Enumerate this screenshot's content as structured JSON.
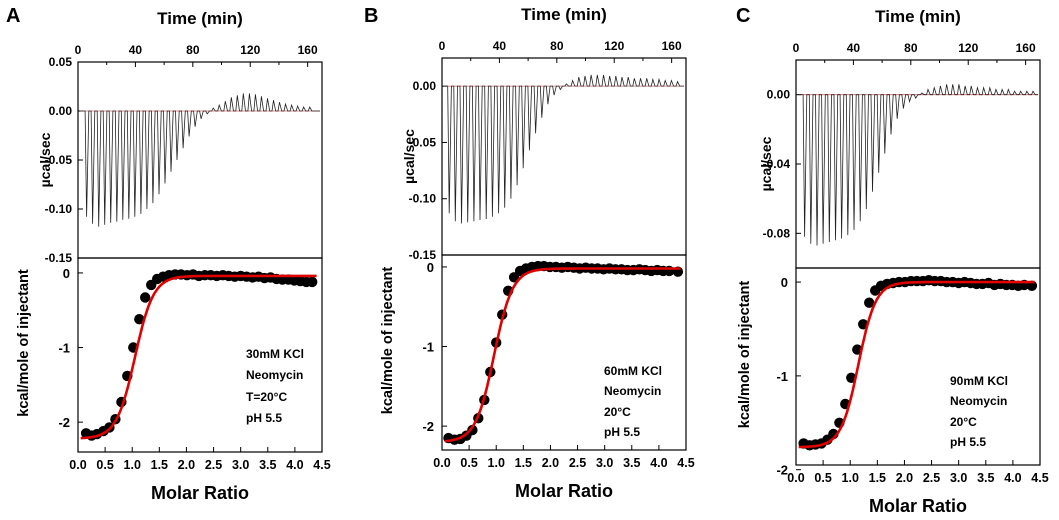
{
  "colors": {
    "axis": "#000000",
    "raw": "#222222",
    "baseline": "#d06060",
    "fit": "#e00000",
    "point": "#000000"
  },
  "chart_data": [
    {
      "type": "scatter",
      "panel_label": "A",
      "top_title": "Time (min)",
      "top_xlim": [
        0,
        170
      ],
      "top_xticks": [
        "0",
        "40",
        "80",
        "120",
        "160"
      ],
      "top_ylabel": "µcal/sec",
      "top_ylim": [
        -0.15,
        0.05
      ],
      "top_yticks": [
        "0.05",
        "0.00",
        "-0.05",
        "-0.10",
        "-0.15"
      ],
      "raw_peaks": {
        "n": 38,
        "t_start": 6,
        "t_step": 4.2,
        "y": [
          -0.108,
          -0.115,
          -0.118,
          -0.116,
          -0.114,
          -0.113,
          -0.111,
          -0.11,
          -0.108,
          -0.105,
          -0.1,
          -0.094,
          -0.085,
          -0.074,
          -0.062,
          -0.05,
          -0.038,
          -0.026,
          -0.016,
          -0.008,
          -0.003,
          0.003,
          0.006,
          0.01,
          0.014,
          0.016,
          0.018,
          0.018,
          0.017,
          0.015,
          0.013,
          0.011,
          0.009,
          0.007,
          0.006,
          0.005,
          0.004,
          0.004
        ]
      },
      "bottom_ylabel": "kcal/mole of injectant",
      "bottom_xlabel": "Molar Ratio",
      "bottom_xlim": [
        0,
        4.5
      ],
      "bottom_xticks": [
        "0.0",
        "0.5",
        "1.0",
        "1.5",
        "2.0",
        "2.5",
        "3.0",
        "3.5",
        "4.0",
        "4.5"
      ],
      "bottom_ylim": [
        -2.4,
        0.2
      ],
      "bottom_yticks": [
        "0",
        "-1",
        "-2"
      ],
      "points": {
        "x": [
          0.15,
          0.25,
          0.35,
          0.47,
          0.58,
          0.69,
          0.8,
          0.91,
          1.02,
          1.13,
          1.24,
          1.35,
          1.46,
          1.57,
          1.68,
          1.79,
          1.9,
          2.01,
          2.12,
          2.23,
          2.34,
          2.45,
          2.56,
          2.67,
          2.78,
          2.89,
          3.0,
          3.11,
          3.22,
          3.33,
          3.44,
          3.55,
          3.66,
          3.77,
          3.88,
          3.99,
          4.1,
          4.21,
          4.32
        ],
        "y": [
          -2.15,
          -2.18,
          -2.16,
          -2.12,
          -2.07,
          -1.96,
          -1.73,
          -1.38,
          -1.0,
          -0.62,
          -0.33,
          -0.16,
          -0.08,
          -0.05,
          -0.03,
          -0.02,
          -0.02,
          -0.03,
          -0.02,
          -0.04,
          -0.03,
          -0.03,
          -0.04,
          -0.03,
          -0.04,
          -0.05,
          -0.04,
          -0.05,
          -0.06,
          -0.05,
          -0.07,
          -0.06,
          -0.08,
          -0.09,
          -0.09,
          -0.1,
          -0.11,
          -0.12,
          -0.12
        ]
      },
      "fit": {
        "top": -0.04,
        "bottom": -2.22,
        "midpoint": 1.05,
        "width": 0.17
      },
      "annotation": [
        "30mM KCl",
        "Neomycin",
        "T=20°C",
        "pH 5.5"
      ]
    },
    {
      "type": "scatter",
      "panel_label": "B",
      "top_title": "Time (min)",
      "top_xlim": [
        0,
        170
      ],
      "top_xticks": [
        "0",
        "40",
        "80",
        "120",
        "160"
      ],
      "top_ylabel": "µcal/sec",
      "top_ylim": [
        -0.15,
        0.025
      ],
      "top_yticks": [
        "0.00",
        "-0.05",
        "-0.10",
        "-0.15"
      ],
      "raw_peaks": {
        "n": 38,
        "t_start": 5,
        "t_step": 4.3,
        "y": [
          -0.113,
          -0.12,
          -0.122,
          -0.121,
          -0.12,
          -0.119,
          -0.118,
          -0.116,
          -0.113,
          -0.108,
          -0.1,
          -0.088,
          -0.073,
          -0.057,
          -0.042,
          -0.028,
          -0.016,
          -0.008,
          -0.003,
          0.002,
          0.005,
          0.008,
          0.009,
          0.01,
          0.01,
          0.01,
          0.009,
          0.009,
          0.008,
          0.008,
          0.007,
          0.007,
          0.007,
          0.006,
          0.006,
          0.005,
          0.005,
          0.004
        ]
      },
      "bottom_ylabel": "kcal/mole of injectant",
      "bottom_xlabel": "Molar Ratio",
      "bottom_xlim": [
        0,
        4.5
      ],
      "bottom_xticks": [
        "0.0",
        "0.5",
        "1.0",
        "1.5",
        "2.0",
        "2.5",
        "3.0",
        "3.5",
        "4.0",
        "4.5"
      ],
      "bottom_ylim": [
        -2.3,
        0.15
      ],
      "bottom_yticks": [
        "0",
        "-1",
        "-2"
      ],
      "points": {
        "x": [
          0.12,
          0.23,
          0.34,
          0.45,
          0.56,
          0.67,
          0.78,
          0.89,
          1.0,
          1.11,
          1.22,
          1.33,
          1.44,
          1.55,
          1.66,
          1.77,
          1.88,
          1.99,
          2.1,
          2.21,
          2.32,
          2.43,
          2.54,
          2.65,
          2.76,
          2.87,
          2.98,
          3.09,
          3.2,
          3.31,
          3.42,
          3.53,
          3.64,
          3.75,
          3.86,
          3.97,
          4.08,
          4.19,
          4.35
        ],
        "y": [
          -2.15,
          -2.17,
          -2.16,
          -2.12,
          -2.05,
          -1.9,
          -1.67,
          -1.32,
          -0.95,
          -0.6,
          -0.3,
          -0.13,
          -0.05,
          -0.02,
          0.0,
          0.01,
          0.01,
          0.0,
          0.0,
          -0.01,
          0.0,
          -0.01,
          -0.02,
          -0.01,
          -0.02,
          -0.02,
          -0.03,
          -0.02,
          -0.03,
          -0.03,
          -0.04,
          -0.04,
          -0.03,
          -0.04,
          -0.05,
          -0.04,
          -0.05,
          -0.05,
          -0.06
        ]
      },
      "fit": {
        "top": -0.02,
        "bottom": -2.2,
        "midpoint": 0.96,
        "width": 0.17
      },
      "annotation": [
        "60mM KCl",
        "Neomycin",
        "20°C",
        "pH 5.5"
      ]
    },
    {
      "type": "scatter",
      "panel_label": "C",
      "top_title": "Time (min)",
      "top_xlim": [
        0,
        170
      ],
      "top_xticks": [
        "0",
        "40",
        "80",
        "120",
        "160"
      ],
      "top_ylabel": "µcal/sec",
      "top_ylim": [
        -0.1,
        0.02
      ],
      "top_yticks": [
        "0.00",
        "-0.04",
        "-0.08"
      ],
      "raw_peaks": {
        "n": 38,
        "t_start": 6,
        "t_step": 4.3,
        "y": [
          -0.082,
          -0.086,
          -0.087,
          -0.086,
          -0.085,
          -0.084,
          -0.083,
          -0.081,
          -0.078,
          -0.073,
          -0.066,
          -0.056,
          -0.045,
          -0.034,
          -0.023,
          -0.014,
          -0.008,
          -0.004,
          -0.002,
          0.001,
          0.003,
          0.004,
          0.005,
          0.006,
          0.006,
          0.006,
          0.005,
          0.005,
          0.004,
          0.004,
          0.004,
          0.003,
          0.003,
          0.003,
          0.002,
          0.002,
          0.002,
          0.002
        ]
      },
      "bottom_ylabel": "kcal/mole of injectant",
      "bottom_xlabel": "Molar Ratio",
      "bottom_xlim": [
        0,
        4.5
      ],
      "bottom_xticks": [
        "0.0",
        "0.5",
        "1.0",
        "1.5",
        "2.0",
        "2.5",
        "3.0",
        "3.5",
        "4.0",
        "4.5"
      ],
      "bottom_ylim": [
        -1.95,
        0.15
      ],
      "bottom_yticks": [
        "0",
        "-1",
        "-2"
      ],
      "points": {
        "x": [
          0.14,
          0.25,
          0.36,
          0.47,
          0.58,
          0.69,
          0.8,
          0.91,
          1.02,
          1.13,
          1.24,
          1.35,
          1.46,
          1.57,
          1.68,
          1.79,
          1.9,
          2.01,
          2.12,
          2.23,
          2.34,
          2.45,
          2.56,
          2.67,
          2.78,
          2.89,
          3.0,
          3.11,
          3.22,
          3.33,
          3.44,
          3.55,
          3.66,
          3.77,
          3.88,
          3.99,
          4.1,
          4.21,
          4.35
        ],
        "y": [
          -1.72,
          -1.74,
          -1.73,
          -1.72,
          -1.68,
          -1.62,
          -1.5,
          -1.3,
          -1.02,
          -0.72,
          -0.45,
          -0.22,
          -0.09,
          -0.04,
          -0.02,
          -0.01,
          0.0,
          0.0,
          0.01,
          0.01,
          0.01,
          0.02,
          0.01,
          0.01,
          0.0,
          0.0,
          -0.01,
          0.0,
          -0.01,
          -0.02,
          -0.02,
          -0.01,
          -0.03,
          -0.02,
          -0.03,
          -0.03,
          -0.04,
          -0.03,
          -0.04
        ]
      },
      "fit": {
        "top": 0.0,
        "bottom": -1.76,
        "midpoint": 1.15,
        "width": 0.16
      },
      "annotation": [
        "90mM KCl",
        "Neomycin",
        "20°C",
        "pH 5.5"
      ]
    }
  ]
}
